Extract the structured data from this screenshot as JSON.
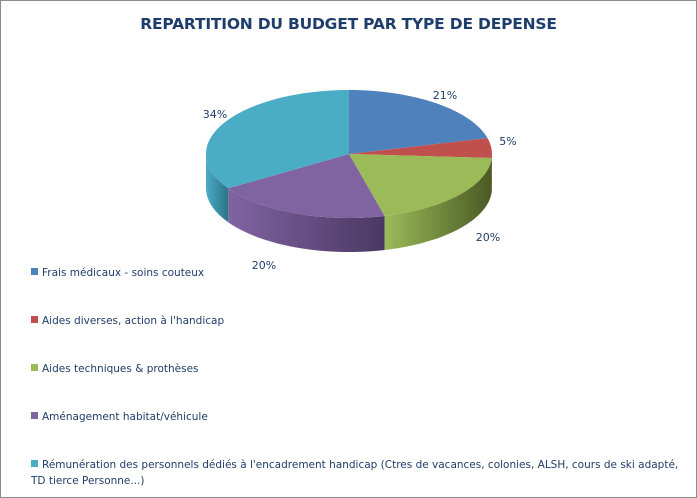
{
  "chart_data": {
    "type": "pie",
    "title": "REPARTITION DU BUDGET PAR TYPE DE DEPENSE",
    "legend_position": "bottom-left",
    "slices": [
      {
        "name": "Frais médicaux - soins couteux",
        "value": 21,
        "label": "21%",
        "color": "#4f81bd",
        "dark": "#2f4f78"
      },
      {
        "name": "Aides diverses, action à l'handicap",
        "value": 5,
        "label": "5%",
        "color": "#c0504d",
        "dark": "#7a2f2d"
      },
      {
        "name": "Aides techniques & prothèses",
        "value": 20,
        "label": "20%",
        "color": "#9bbb59",
        "dark": "#4a5a24"
      },
      {
        "name": "Aménagement habitat/véhicule",
        "value": 20,
        "label": "20%",
        "color": "#8064a2",
        "dark": "#4a3862"
      },
      {
        "name": "Rémunération des personnels dédiés à l'encadrement handicap (Ctres de vacances, colonies, ALSH, cours de ski adapté, TD tierce Personne...)",
        "value": 34,
        "label": "34%",
        "color": "#4bacc6",
        "dark": "#2c7386"
      }
    ]
  }
}
